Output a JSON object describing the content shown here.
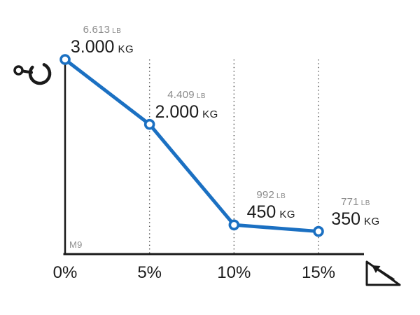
{
  "chart_data": {
    "type": "line",
    "title": "",
    "xlabel": "",
    "ylabel": "",
    "categories": [
      "0%",
      "5%",
      "10%",
      "15%"
    ],
    "x_values": [
      0,
      5,
      10,
      15
    ],
    "series": [
      {
        "name": "capacity_kg",
        "unit": "KG",
        "values": [
          3000,
          2000,
          450,
          350
        ]
      },
      {
        "name": "capacity_lb",
        "unit": "LB",
        "values": [
          6613,
          4409,
          992,
          771
        ]
      }
    ],
    "point_labels": [
      {
        "lb_value": "6.613",
        "lb_unit": "LB",
        "kg_value": "3.000",
        "kg_unit": "KG"
      },
      {
        "lb_value": "4.409",
        "lb_unit": "LB",
        "kg_value": "2.000",
        "kg_unit": "KG"
      },
      {
        "lb_value": "992",
        "lb_unit": "LB",
        "kg_value": "450",
        "kg_unit": "KG"
      },
      {
        "lb_value": "771",
        "lb_unit": "LB",
        "kg_value": "350",
        "kg_unit": "KG"
      }
    ],
    "xlim": [
      0,
      17.8
    ],
    "ylim": [
      0,
      3000
    ],
    "grid": "vertical-dotted",
    "legend": false
  },
  "annotations": {
    "model_label": "M9"
  },
  "icons": {
    "top_left": "crane-hook-icon",
    "bottom_right": "slope-gradient-icon"
  },
  "colors": {
    "line": "#1B70C2",
    "marker_fill": "#ffffff",
    "axis": "#1a1a1a",
    "grid": "#4d4d4d",
    "text_primary": "#1c1c1c",
    "text_secondary": "#8a8a8a",
    "background": "#ffffff"
  }
}
